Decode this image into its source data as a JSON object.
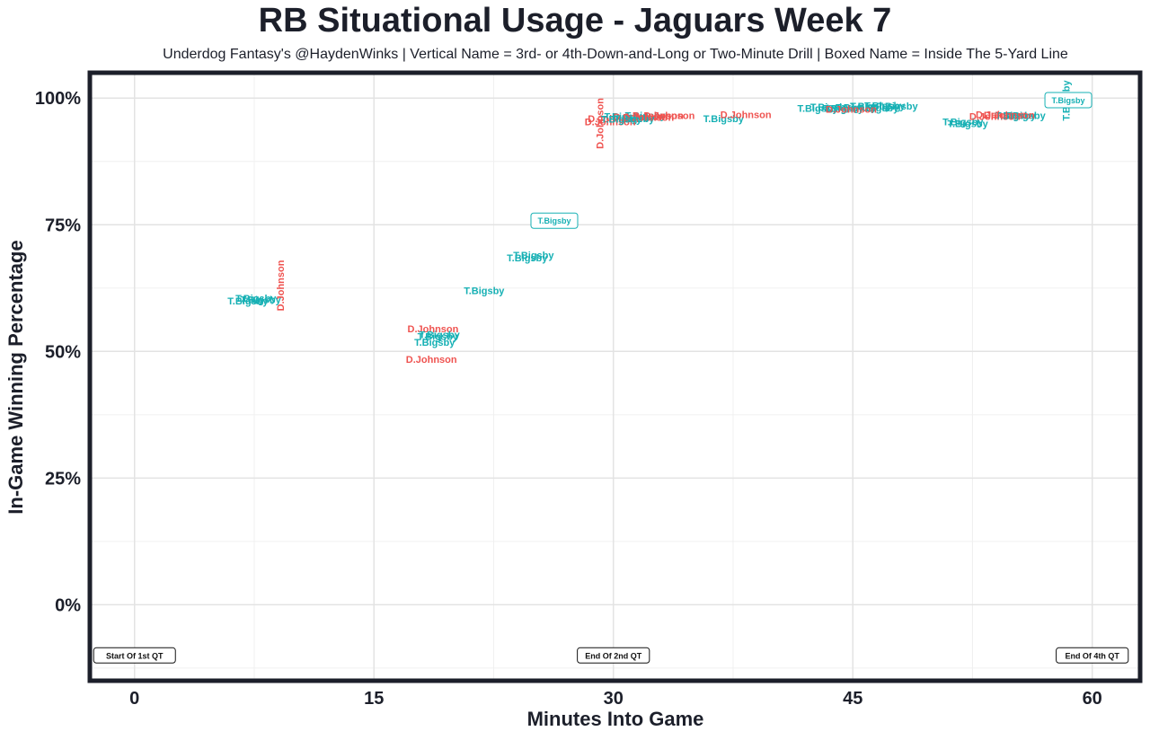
{
  "chart_data": {
    "type": "scatter",
    "title": "RB Situational Usage - Jaguars Week 7",
    "subtitle": "Underdog Fantasy's @HaydenWinks | Vertical Name = 3rd- or 4th-Down-and-Long or Two-Minute Drill | Boxed Name = Inside The 5-Yard Line",
    "xlabel": "Minutes Into Game",
    "ylabel": "In-Game Winning Percentage",
    "xlim": [
      -2.8,
      63
    ],
    "ylim": [
      -15,
      105
    ],
    "xticks": [
      0,
      15,
      30,
      45,
      60
    ],
    "xtick_labels": [
      "0",
      "15",
      "30",
      "45",
      "60"
    ],
    "yticks": [
      0,
      25,
      50,
      75,
      100
    ],
    "ytick_labels": [
      "0%",
      "25%",
      "50%",
      "75%",
      "100%"
    ],
    "grid": true,
    "colors": {
      "D.Johnson": "#ef5350",
      "T.Bigsby": "#16b0b4"
    },
    "annotations": [
      {
        "x": 0,
        "y": -10,
        "text": "Start Of 1st QT"
      },
      {
        "x": 30,
        "y": -10,
        "text": "End Of 2nd QT"
      },
      {
        "x": 60,
        "y": -10,
        "text": "End Of 4th QT"
      }
    ],
    "points": [
      {
        "x": 7.6,
        "y": 60.5,
        "player": "T.Bigsby",
        "style": "normal"
      },
      {
        "x": 7.9,
        "y": 60.2,
        "player": "T.Bigsby",
        "style": "normal"
      },
      {
        "x": 7.1,
        "y": 60.0,
        "player": "T.Bigsby",
        "style": "normal"
      },
      {
        "x": 9.2,
        "y": 63.0,
        "player": "D.Johnson",
        "style": "vertical"
      },
      {
        "x": 18.7,
        "y": 54.5,
        "player": "D.Johnson",
        "style": "normal"
      },
      {
        "x": 19.1,
        "y": 53.3,
        "player": "T.Bigsby",
        "style": "normal"
      },
      {
        "x": 19.0,
        "y": 53.0,
        "player": "T.Bigsby",
        "style": "normal"
      },
      {
        "x": 18.8,
        "y": 51.8,
        "player": "T.Bigsby",
        "style": "normal"
      },
      {
        "x": 18.6,
        "y": 48.5,
        "player": "D.Johnson",
        "style": "normal"
      },
      {
        "x": 21.9,
        "y": 62.0,
        "player": "T.Bigsby",
        "style": "normal"
      },
      {
        "x": 25.0,
        "y": 69.0,
        "player": "T.Bigsby",
        "style": "normal"
      },
      {
        "x": 24.6,
        "y": 68.5,
        "player": "T.Bigsby",
        "style": "normal"
      },
      {
        "x": 26.3,
        "y": 75.8,
        "player": "T.Bigsby",
        "style": "boxed"
      },
      {
        "x": 29.2,
        "y": 95.0,
        "player": "D.Johnson",
        "style": "vertical"
      },
      {
        "x": 30.0,
        "y": 96.0,
        "player": "D.Johnson",
        "style": "normal"
      },
      {
        "x": 30.7,
        "y": 96.4,
        "player": "T.Bigsby",
        "style": "normal"
      },
      {
        "x": 32.0,
        "y": 96.6,
        "player": "T.Bigsby",
        "style": "normal"
      },
      {
        "x": 32.8,
        "y": 96.6,
        "player": "D.Johnson",
        "style": "normal"
      },
      {
        "x": 33.5,
        "y": 96.6,
        "player": "D.Johnson",
        "style": "normal"
      },
      {
        "x": 31.6,
        "y": 96.3,
        "player": "D.Johnson",
        "style": "normal"
      },
      {
        "x": 31.3,
        "y": 96.0,
        "player": "T.Bigsby",
        "style": "normal"
      },
      {
        "x": 32.2,
        "y": 96.2,
        "player": "D.Johnson",
        "style": "normal"
      },
      {
        "x": 29.8,
        "y": 95.3,
        "player": "D.Johnson",
        "style": "normal"
      },
      {
        "x": 30.5,
        "y": 95.9,
        "player": "T.Bigsby",
        "style": "normal"
      },
      {
        "x": 36.9,
        "y": 96.0,
        "player": "T.Bigsby",
        "style": "normal"
      },
      {
        "x": 38.3,
        "y": 96.8,
        "player": "D.Johnson",
        "style": "normal"
      },
      {
        "x": 42.8,
        "y": 98.0,
        "player": "T.Bigsby",
        "style": "normal"
      },
      {
        "x": 43.6,
        "y": 98.3,
        "player": "T.Bigsby",
        "style": "normal"
      },
      {
        "x": 44.4,
        "y": 98.0,
        "player": "T.Bigsby",
        "style": "normal"
      },
      {
        "x": 45.2,
        "y": 98.2,
        "player": "T.Bigsby",
        "style": "normal"
      },
      {
        "x": 46.1,
        "y": 98.4,
        "player": "T.Bigsby",
        "style": "normal"
      },
      {
        "x": 47.0,
        "y": 98.5,
        "player": "T.Bigsby",
        "style": "normal"
      },
      {
        "x": 47.8,
        "y": 98.4,
        "player": "T.Bigsby",
        "style": "normal"
      },
      {
        "x": 46.6,
        "y": 98.1,
        "player": "T.Bigsby",
        "style": "normal"
      },
      {
        "x": 44.9,
        "y": 97.8,
        "player": "D.Johnson",
        "style": "normal"
      },
      {
        "x": 51.9,
        "y": 95.3,
        "player": "T.Bigsby",
        "style": "normal"
      },
      {
        "x": 52.2,
        "y": 95.0,
        "player": "T.Bigsby",
        "style": "normal"
      },
      {
        "x": 54.3,
        "y": 96.8,
        "player": "D.Johnson",
        "style": "normal"
      },
      {
        "x": 53.9,
        "y": 96.4,
        "player": "D.Johnson",
        "style": "normal"
      },
      {
        "x": 55.2,
        "y": 96.6,
        "player": "T.Bigsby",
        "style": "normal"
      },
      {
        "x": 55.8,
        "y": 96.6,
        "player": "T.Bigsby",
        "style": "normal"
      },
      {
        "x": 54.8,
        "y": 96.7,
        "player": "D.Johnson",
        "style": "normal"
      },
      {
        "x": 58.4,
        "y": 99.5,
        "player": "T.Bigsby",
        "style": "vertical"
      },
      {
        "x": 58.5,
        "y": 99.6,
        "player": "T.Bigsby",
        "style": "boxed"
      }
    ]
  }
}
